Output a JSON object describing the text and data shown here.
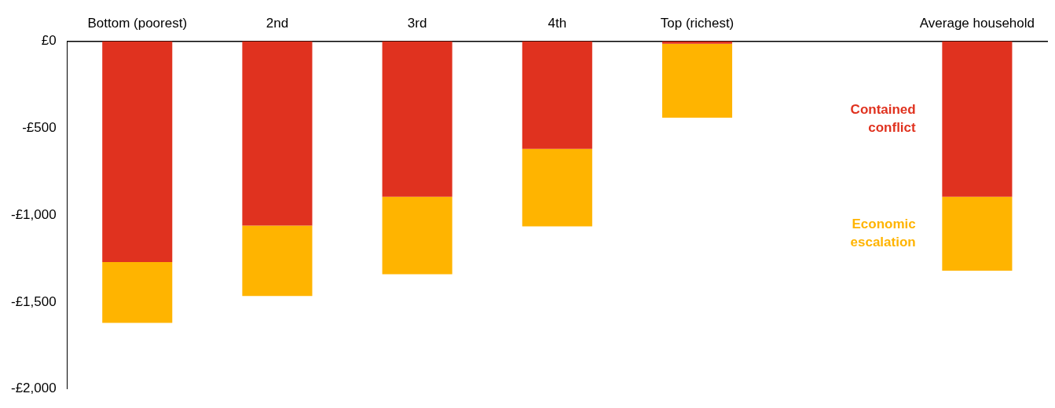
{
  "chart_data": {
    "type": "bar",
    "stacked": true,
    "categories": [
      "Bottom (poorest)",
      "2nd",
      "3rd",
      "4th",
      "Top (richest)",
      null,
      "Average household"
    ],
    "series": [
      {
        "name": "Contained conflict",
        "color": "#e0321f",
        "values": [
          -1270,
          -1060,
          -895,
          -620,
          -15,
          null,
          -895
        ]
      },
      {
        "name": "Economic escalation",
        "color": "#ffb400",
        "values": [
          -350,
          -405,
          -445,
          -445,
          -425,
          null,
          -425
        ]
      }
    ],
    "ylim": [
      -2000,
      0
    ],
    "yticks": [
      {
        "value": 0,
        "label": "£0"
      },
      {
        "value": -500,
        "label": "-£500"
      },
      {
        "value": -1000,
        "label": "-£1,000"
      },
      {
        "value": -1500,
        "label": "-£1,500"
      },
      {
        "value": -2000,
        "label": "-£2,000"
      }
    ],
    "grid": false
  }
}
